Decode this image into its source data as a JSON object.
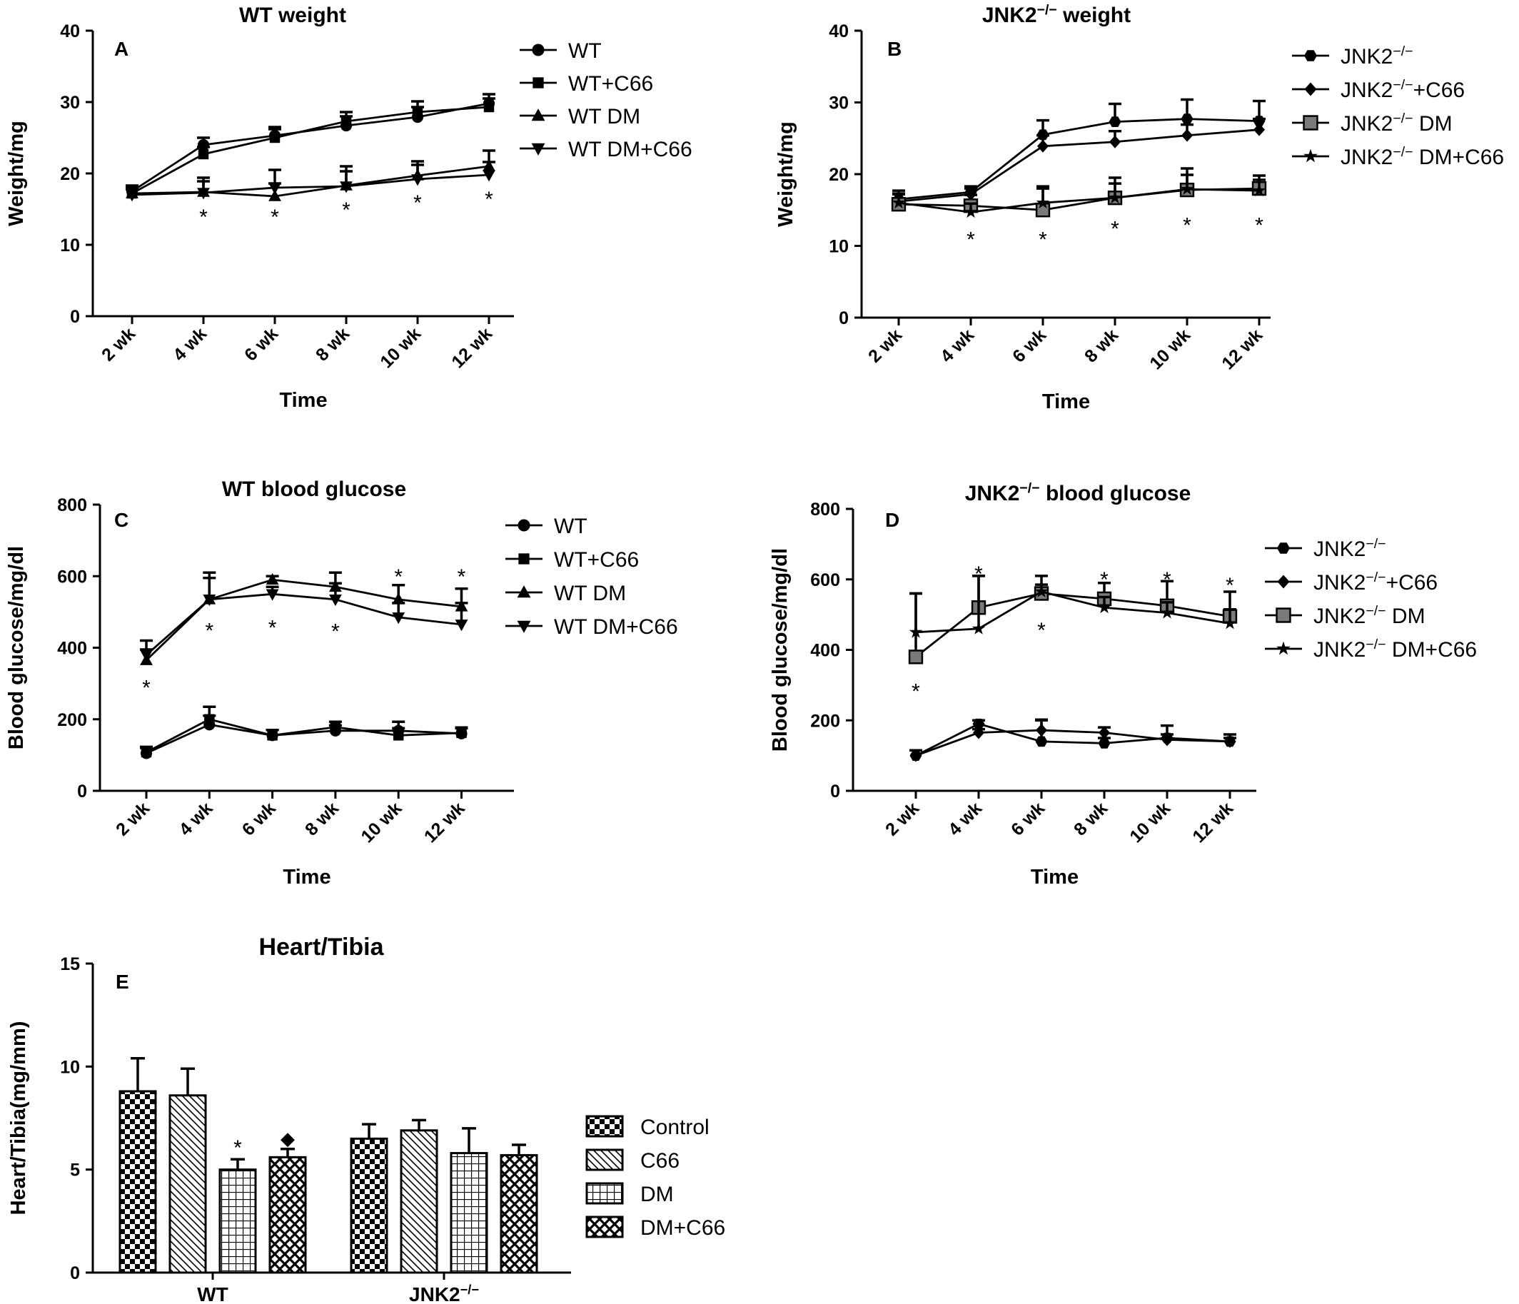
{
  "chart_data": [
    {
      "type": "line",
      "panel": "A",
      "title": "WT weight",
      "xlabel": "Time",
      "ylabel": "Weight/mg",
      "categories": [
        "2 wk",
        "4 wk",
        "6 wk",
        "8 wk",
        "10 wk",
        "12 wk"
      ],
      "ylim": [
        0,
        40
      ],
      "yticks": [
        0,
        10,
        20,
        30,
        40
      ],
      "legend_position": "top-right",
      "series": [
        {
          "name": "WT",
          "marker": "circle",
          "values": [
            17.5,
            24.0,
            25.3,
            26.7,
            27.9,
            29.8
          ],
          "err": [
            0.8,
            1.0,
            1.2,
            1.3,
            1.4,
            1.3
          ]
        },
        {
          "name": "WT+C66",
          "marker": "square",
          "values": [
            17.2,
            22.7,
            25.0,
            27.3,
            28.6,
            29.3
          ],
          "err": [
            0.8,
            1.0,
            1.2,
            1.3,
            1.5,
            1.2
          ]
        },
        {
          "name": "WT DM",
          "marker": "triangle-up",
          "values": [
            17.2,
            17.4,
            16.8,
            18.3,
            19.7,
            21.0
          ],
          "err": [
            0.8,
            2.0,
            1.8,
            2.0,
            2.0,
            2.2
          ]
        },
        {
          "name": "WT DM+C66",
          "marker": "triangle-down",
          "values": [
            17.0,
            17.3,
            18.0,
            18.2,
            19.2,
            19.8
          ],
          "err": [
            0.8,
            1.6,
            2.5,
            2.8,
            2.0,
            1.8
          ]
        }
      ],
      "annotations": [
        {
          "text": "*",
          "x": "4 wk",
          "y": 14.5
        },
        {
          "text": "*",
          "x": "6 wk",
          "y": 14.5
        },
        {
          "text": "*",
          "x": "8 wk",
          "y": 15.5
        },
        {
          "text": "*",
          "x": "10 wk",
          "y": 16.5
        },
        {
          "text": "*",
          "x": "12 wk",
          "y": 17.0
        }
      ]
    },
    {
      "type": "line",
      "panel": "B",
      "title": "JNK2⁻/⁻ weight",
      "xlabel": "Time",
      "ylabel": "Weight/mg",
      "categories": [
        "2 wk",
        "4 wk",
        "6 wk",
        "8 wk",
        "10 wk",
        "12 wk"
      ],
      "ylim": [
        0,
        40
      ],
      "yticks": [
        0,
        10,
        20,
        30,
        40
      ],
      "legend_position": "top-right",
      "series": [
        {
          "name": "JNK2⁻/⁻",
          "marker": "hexagon",
          "values": [
            16.5,
            17.5,
            25.5,
            27.3,
            27.7,
            27.4
          ],
          "err": [
            1.2,
            0.8,
            2.0,
            2.5,
            2.7,
            2.8
          ]
        },
        {
          "name": "JNK2⁻/⁻+C66",
          "marker": "diamond",
          "values": [
            16.2,
            17.2,
            23.9,
            24.5,
            25.4,
            26.2
          ],
          "err": [
            1.0,
            0.8,
            1.5,
            1.5,
            1.5,
            1.5
          ]
        },
        {
          "name": "JNK2⁻/⁻ DM",
          "marker": "square-gray",
          "values": [
            15.8,
            15.6,
            15.0,
            16.7,
            17.8,
            18.0
          ],
          "err": [
            1.5,
            1.5,
            3.3,
            2.8,
            3.0,
            1.8
          ]
        },
        {
          "name": "JNK2⁻/⁻ DM+C66",
          "marker": "star",
          "values": [
            16.0,
            14.7,
            16.0,
            16.7,
            17.9,
            17.7
          ],
          "err": [
            1.2,
            1.2,
            2.0,
            2.0,
            2.0,
            1.5
          ]
        }
      ],
      "annotations": [
        {
          "text": "*",
          "x": "4 wk",
          "y": 11.5
        },
        {
          "text": "*",
          "x": "6 wk",
          "y": 11.5
        },
        {
          "text": "*",
          "x": "8 wk",
          "y": 13.0
        },
        {
          "text": "*",
          "x": "10 wk",
          "y": 13.5
        },
        {
          "text": "*",
          "x": "12 wk",
          "y": 13.5
        }
      ]
    },
    {
      "type": "line",
      "panel": "C",
      "title": "WT blood glucose",
      "xlabel": "Time",
      "ylabel": "Blood glucose/mg/dl",
      "categories": [
        "2 wk",
        "4 wk",
        "6 wk",
        "8 wk",
        "10 wk",
        "12 wk"
      ],
      "ylim": [
        0,
        800
      ],
      "yticks": [
        0,
        200,
        400,
        600,
        800
      ],
      "legend_position": "top-right",
      "series": [
        {
          "name": "WT",
          "marker": "circle",
          "values": [
            105,
            185,
            155,
            168,
            168,
            160
          ],
          "err": [
            15,
            25,
            15,
            15,
            25,
            15
          ]
        },
        {
          "name": "WT+C66",
          "marker": "square",
          "values": [
            108,
            200,
            155,
            178,
            155,
            162
          ],
          "err": [
            15,
            35,
            15,
            15,
            20,
            15
          ]
        },
        {
          "name": "WT DM",
          "marker": "triangle-up",
          "values": [
            365,
            535,
            590,
            570,
            535,
            515
          ],
          "err": [
            30,
            75,
            10,
            40,
            40,
            50
          ]
        },
        {
          "name": "WT DM+C66",
          "marker": "triangle-down",
          "values": [
            380,
            535,
            550,
            535,
            485,
            465
          ],
          "err": [
            40,
            60,
            20,
            45,
            40,
            60
          ]
        }
      ],
      "annotations": [
        {
          "text": "*",
          "x": "2 wk",
          "y": 300
        },
        {
          "text": "*",
          "x": "4 wk",
          "y": 460
        },
        {
          "text": "*",
          "x": "6 wk",
          "y": 468
        },
        {
          "text": "*",
          "x": "8 wk",
          "y": 458
        },
        {
          "text": "*",
          "x": "10 wk",
          "y": 610
        },
        {
          "text": "*",
          "x": "12 wk",
          "y": 610
        }
      ]
    },
    {
      "type": "line",
      "panel": "D",
      "title": "JNK2⁻/⁻ blood glucose",
      "xlabel": "Time",
      "ylabel": "Blood glucose/mg/dl",
      "categories": [
        "2 wk",
        "4 wk",
        "6 wk",
        "8 wk",
        "10 wk",
        "12 wk"
      ],
      "ylim": [
        0,
        800
      ],
      "yticks": [
        0,
        200,
        400,
        600,
        800
      ],
      "legend_position": "right",
      "series": [
        {
          "name": "JNK2⁻/⁻",
          "marker": "hexagon",
          "values": [
            100,
            190,
            140,
            135,
            150,
            140
          ],
          "err": [
            15,
            10,
            60,
            15,
            35,
            20
          ]
        },
        {
          "name": "JNK2⁻/⁻+C66",
          "marker": "diamond",
          "values": [
            100,
            165,
            172,
            165,
            145,
            140
          ],
          "err": [
            15,
            10,
            30,
            15,
            15,
            10
          ]
        },
        {
          "name": "JNK2⁻/⁻ DM",
          "marker": "square-gray",
          "values": [
            380,
            520,
            560,
            545,
            525,
            495
          ],
          "err": [
            180,
            90,
            50,
            45,
            70,
            70
          ]
        },
        {
          "name": "JNK2⁻/⁻ DM+C66",
          "marker": "star",
          "values": [
            450,
            460,
            565,
            520,
            505,
            475
          ],
          "err": [
            110,
            150,
            20,
            30,
            30,
            40
          ]
        }
      ],
      "annotations": [
        {
          "text": "*",
          "x": "2 wk",
          "y": 295
        },
        {
          "text": "*",
          "x": "4 wk",
          "y": 628
        },
        {
          "text": "*",
          "x": "6 wk",
          "y": 468
        },
        {
          "text": "*",
          "x": "8 wk",
          "y": 612
        },
        {
          "text": "*",
          "x": "10 wk",
          "y": 612
        },
        {
          "text": "*",
          "x": "12 wk",
          "y": 595
        }
      ]
    },
    {
      "type": "bar",
      "panel": "E",
      "title": "Heart/Tibia",
      "xlabel": "",
      "ylabel": "Heart/Tibia(mg/mm)",
      "categories": [
        "WT",
        "JNK2⁻/⁻"
      ],
      "ylim": [
        0,
        15
      ],
      "yticks": [
        0,
        5,
        10,
        15
      ],
      "legend_position": "right",
      "series": [
        {
          "name": "Control",
          "pattern": "checker",
          "values": [
            8.8,
            6.5
          ],
          "err": [
            1.6,
            0.7
          ]
        },
        {
          "name": "C66",
          "pattern": "diagonal",
          "values": [
            8.6,
            6.9
          ],
          "err": [
            1.3,
            0.5
          ]
        },
        {
          "name": "DM",
          "pattern": "grid",
          "values": [
            5.0,
            5.8
          ],
          "err": [
            0.5,
            1.2
          ]
        },
        {
          "name": "DM+C66",
          "pattern": "crosshatch",
          "values": [
            5.6,
            5.7
          ],
          "err": [
            0.4,
            0.5
          ]
        }
      ],
      "annotations": [
        {
          "text": "*",
          "group": "WT",
          "series": "DM"
        },
        {
          "text": "◆",
          "group": "WT",
          "series": "DM+C66"
        }
      ]
    }
  ]
}
